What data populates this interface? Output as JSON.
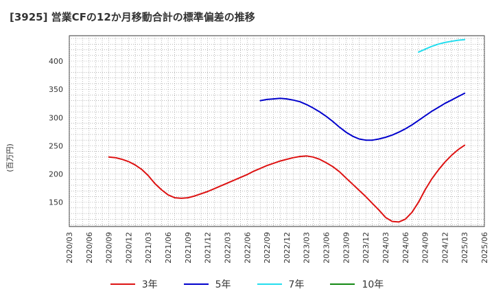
{
  "title": "[3925]  営業CFの12か月移動合計の標準偏差の推移",
  "ylabel": "(百万円)",
  "colors": {
    "3年": "#dd1111",
    "5年": "#0000cc",
    "7年": "#22ddee",
    "10年": "#118811"
  },
  "chart_data": {
    "type": "line",
    "title": "[3925]  営業CFの12か月移動合計の標準偏差の推移",
    "ylabel": "(百万円)",
    "xlabel": "",
    "ylim": [
      107,
      445
    ],
    "yticks": [
      150,
      200,
      250,
      300,
      350,
      400
    ],
    "x_range": [
      "2020-03",
      "2025-06"
    ],
    "x_ticks": [
      "2020/03",
      "2020/06",
      "2020/09",
      "2020/12",
      "2021/03",
      "2021/06",
      "2021/09",
      "2021/12",
      "2022/03",
      "2022/06",
      "2022/09",
      "2022/12",
      "2023/03",
      "2023/06",
      "2023/09",
      "2023/12",
      "2024/03",
      "2024/06",
      "2024/09",
      "2024/12",
      "2025/03",
      "2025/06"
    ],
    "grid": true,
    "legend_position": "bottom",
    "series": [
      {
        "name": "3年",
        "points": [
          [
            "2020-09",
            230
          ],
          [
            "2020-10",
            229
          ],
          [
            "2020-11",
            226
          ],
          [
            "2020-12",
            222
          ],
          [
            "2021-01",
            216
          ],
          [
            "2021-02",
            208
          ],
          [
            "2021-03",
            197
          ],
          [
            "2021-04",
            183
          ],
          [
            "2021-05",
            172
          ],
          [
            "2021-06",
            163
          ],
          [
            "2021-07",
            158
          ],
          [
            "2021-08",
            157
          ],
          [
            "2021-09",
            158
          ],
          [
            "2021-10",
            161
          ],
          [
            "2021-11",
            165
          ],
          [
            "2021-12",
            169
          ],
          [
            "2022-01",
            174
          ],
          [
            "2022-02",
            179
          ],
          [
            "2022-03",
            184
          ],
          [
            "2022-04",
            189
          ],
          [
            "2022-05",
            194
          ],
          [
            "2022-06",
            199
          ],
          [
            "2022-07",
            205
          ],
          [
            "2022-08",
            210
          ],
          [
            "2022-09",
            215
          ],
          [
            "2022-10",
            219
          ],
          [
            "2022-11",
            223
          ],
          [
            "2022-12",
            226
          ],
          [
            "2023-01",
            229
          ],
          [
            "2023-02",
            231
          ],
          [
            "2023-03",
            232
          ],
          [
            "2023-04",
            230
          ],
          [
            "2023-05",
            226
          ],
          [
            "2023-06",
            220
          ],
          [
            "2023-07",
            213
          ],
          [
            "2023-08",
            204
          ],
          [
            "2023-09",
            193
          ],
          [
            "2023-10",
            182
          ],
          [
            "2023-11",
            171
          ],
          [
            "2023-12",
            160
          ],
          [
            "2024-01",
            148
          ],
          [
            "2024-02",
            136
          ],
          [
            "2024-03",
            123
          ],
          [
            "2024-04",
            116
          ],
          [
            "2024-05",
            115
          ],
          [
            "2024-06",
            120
          ],
          [
            "2024-07",
            132
          ],
          [
            "2024-08",
            150
          ],
          [
            "2024-09",
            172
          ],
          [
            "2024-10",
            191
          ],
          [
            "2024-11",
            207
          ],
          [
            "2024-12",
            221
          ],
          [
            "2025-01",
            233
          ],
          [
            "2025-02",
            243
          ],
          [
            "2025-03",
            251
          ]
        ]
      },
      {
        "name": "5年",
        "points": [
          [
            "2022-08",
            330
          ],
          [
            "2022-09",
            332
          ],
          [
            "2022-10",
            333
          ],
          [
            "2022-11",
            334
          ],
          [
            "2022-12",
            333
          ],
          [
            "2023-01",
            331
          ],
          [
            "2023-02",
            328
          ],
          [
            "2023-03",
            323
          ],
          [
            "2023-04",
            317
          ],
          [
            "2023-05",
            310
          ],
          [
            "2023-06",
            302
          ],
          [
            "2023-07",
            293
          ],
          [
            "2023-08",
            283
          ],
          [
            "2023-09",
            274
          ],
          [
            "2023-10",
            267
          ],
          [
            "2023-11",
            262
          ],
          [
            "2023-12",
            260
          ],
          [
            "2024-01",
            260
          ],
          [
            "2024-02",
            262
          ],
          [
            "2024-03",
            265
          ],
          [
            "2024-04",
            269
          ],
          [
            "2024-05",
            274
          ],
          [
            "2024-06",
            280
          ],
          [
            "2024-07",
            287
          ],
          [
            "2024-08",
            295
          ],
          [
            "2024-09",
            303
          ],
          [
            "2024-10",
            311
          ],
          [
            "2024-11",
            318
          ],
          [
            "2024-12",
            325
          ],
          [
            "2025-01",
            331
          ],
          [
            "2025-02",
            337
          ],
          [
            "2025-03",
            343
          ]
        ]
      },
      {
        "name": "7年",
        "points": [
          [
            "2024-08",
            416
          ],
          [
            "2024-09",
            421
          ],
          [
            "2024-10",
            426
          ],
          [
            "2024-11",
            430
          ],
          [
            "2024-12",
            433
          ],
          [
            "2025-01",
            435
          ],
          [
            "2025-02",
            437
          ],
          [
            "2025-03",
            438
          ]
        ]
      },
      {
        "name": "10年",
        "points": []
      }
    ]
  }
}
